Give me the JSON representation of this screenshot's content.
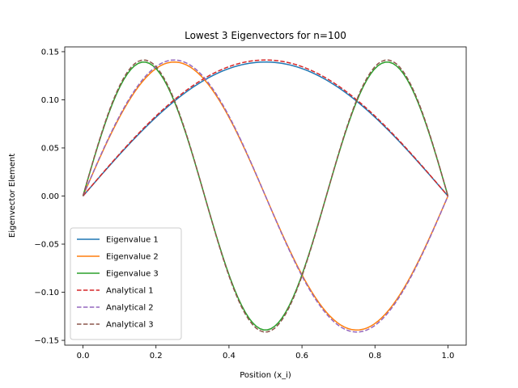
{
  "chart_data": {
    "type": "line",
    "title": "Lowest 3 Eigenvectors for n=100",
    "xlabel": "Position (x_i)",
    "ylabel": "Eigenvector Element",
    "xlim": [
      -0.05,
      1.05
    ],
    "ylim": [
      -0.155,
      0.155
    ],
    "xticks": [
      0.0,
      0.2,
      0.4,
      0.6,
      0.8,
      1.0
    ],
    "xtick_labels": [
      "0.0",
      "0.2",
      "0.4",
      "0.6",
      "0.8",
      "1.0"
    ],
    "yticks": [
      -0.15,
      -0.1,
      -0.05,
      0.0,
      0.05,
      0.1,
      0.15
    ],
    "ytick_labels": [
      "−0.15",
      "−0.10",
      "−0.05",
      "0.00",
      "0.05",
      "0.10",
      "0.15"
    ],
    "legend_position": "lower-left",
    "grid": false,
    "n": 100,
    "series": [
      {
        "name": "Eigenvalue 1",
        "mode": 1,
        "amplitude": 0.1393,
        "style": "solid",
        "color": "#1f77b4"
      },
      {
        "name": "Eigenvalue 2",
        "mode": 2,
        "amplitude": 0.1393,
        "style": "solid",
        "color": "#ff7f0e"
      },
      {
        "name": "Eigenvalue 3",
        "mode": 3,
        "amplitude": 0.1393,
        "style": "solid",
        "color": "#2ca02c"
      },
      {
        "name": "Analytical 1",
        "mode": 1,
        "amplitude": 0.1414,
        "style": "dashed",
        "color": "#d62728"
      },
      {
        "name": "Analytical 2",
        "mode": 2,
        "amplitude": 0.1414,
        "style": "dashed",
        "color": "#9467bd"
      },
      {
        "name": "Analytical 3",
        "mode": 3,
        "amplitude": 0.1414,
        "style": "dashed",
        "color": "#8c564b"
      }
    ]
  }
}
